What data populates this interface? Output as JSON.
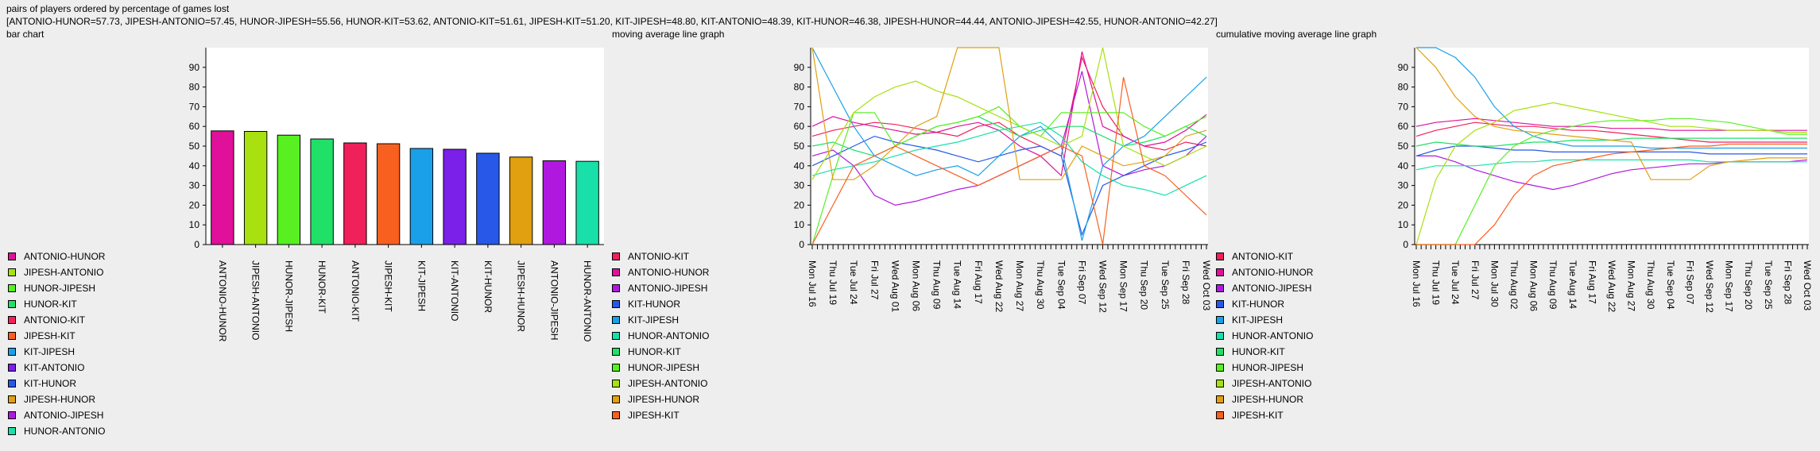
{
  "header": {
    "title": "pairs of players ordered by percentage of games lost",
    "summary": "[ANTONIO-HUNOR=57.73, JIPESH-ANTONIO=57.45, HUNOR-JIPESH=55.56, HUNOR-KIT=53.62, ANTONIO-KIT=51.61, JIPESH-KIT=51.20, KIT-JIPESH=48.80, KIT-ANTONIO=48.39, KIT-HUNOR=46.38, JIPESH-HUNOR=44.44, ANTONIO-JIPESH=42.55, HUNOR-ANTONIO=42.27]"
  },
  "colors": {
    "ANTONIO-HUNOR": "#e0109a",
    "JIPESH-ANTONIO": "#a8e010",
    "HUNOR-JIPESH": "#58f020",
    "HUNOR-KIT": "#20e068",
    "ANTONIO-KIT": "#f0205a",
    "JIPESH-KIT": "#f86020",
    "KIT-JIPESH": "#1aa0e8",
    "KIT-ANTONIO": "#7a20e8",
    "KIT-HUNOR": "#2858e8",
    "JIPESH-HUNOR": "#e0a010",
    "ANTONIO-JIPESH": "#b018e0",
    "HUNOR-ANTONIO": "#18e0a8"
  },
  "chart_data": [
    {
      "type": "bar",
      "title": "bar chart",
      "categories": [
        "ANTONIO-HUNOR",
        "JIPESH-ANTONIO",
        "HUNOR-JIPESH",
        "HUNOR-KIT",
        "ANTONIO-KIT",
        "JIPESH-KIT",
        "KIT-JIPESH",
        "KIT-ANTONIO",
        "KIT-HUNOR",
        "JIPESH-HUNOR",
        "ANTONIO-JIPESH",
        "HUNOR-ANTONIO"
      ],
      "values": [
        57.73,
        57.45,
        55.56,
        53.62,
        51.61,
        51.2,
        48.8,
        48.39,
        46.38,
        44.44,
        42.55,
        42.27
      ],
      "yticks": [
        "0",
        "10",
        "20",
        "30",
        "40",
        "50",
        "60",
        "70",
        "80",
        "90"
      ],
      "ylim": [
        0,
        100
      ],
      "legend": [
        "ANTONIO-HUNOR",
        "JIPESH-ANTONIO",
        "HUNOR-JIPESH",
        "HUNOR-KIT",
        "ANTONIO-KIT",
        "JIPESH-KIT",
        "KIT-JIPESH",
        "KIT-ANTONIO",
        "KIT-HUNOR",
        "JIPESH-HUNOR",
        "ANTONIO-JIPESH",
        "HUNOR-ANTONIO"
      ]
    },
    {
      "type": "line",
      "title": "moving average line graph",
      "ylim": [
        0,
        100
      ],
      "yticks": [
        "0",
        "10",
        "20",
        "30",
        "40",
        "50",
        "60",
        "70",
        "80",
        "90"
      ],
      "x": [
        "Mon Jul 16",
        "Thu Jul 19",
        "Tue Jul 24",
        "Fri Jul 27",
        "Wed Aug 01",
        "Mon Aug 06",
        "Thu Aug 09",
        "Tue Aug 14",
        "Fri Aug 17",
        "Wed Aug 22",
        "Mon Aug 27",
        "Thu Aug 30",
        "Tue Sep 04",
        "Fri Sep 07",
        "Wed Sep 12",
        "Mon Sep 17",
        "Thu Sep 20",
        "Tue Sep 25",
        "Fri Sep 28",
        "Wed Oct 03"
      ],
      "legend": [
        "ANTONIO-KIT",
        "ANTONIO-HUNOR",
        "ANTONIO-JIPESH",
        "KIT-HUNOR",
        "KIT-JIPESH",
        "HUNOR-ANTONIO",
        "HUNOR-KIT",
        "HUNOR-JIPESH",
        "JIPESH-ANTONIO",
        "JIPESH-HUNOR",
        "JIPESH-KIT"
      ],
      "series": [
        {
          "name": "ANTONIO-KIT",
          "values": [
            55,
            58,
            60,
            62,
            61,
            59,
            57,
            55,
            60,
            62,
            55,
            50,
            45,
            95,
            70,
            55,
            50,
            48,
            52,
            50
          ]
        },
        {
          "name": "ANTONIO-HUNOR",
          "values": [
            60,
            65,
            62,
            60,
            58,
            56,
            57,
            60,
            62,
            58,
            50,
            45,
            35,
            98,
            60,
            55,
            50,
            52,
            58,
            66
          ]
        },
        {
          "name": "ANTONIO-JIPESH",
          "values": [
            45,
            48,
            40,
            25,
            20,
            22,
            25,
            28,
            30,
            35,
            40,
            45,
            50,
            88,
            40,
            35,
            38,
            40,
            45,
            55
          ]
        },
        {
          "name": "KIT-HUNOR",
          "values": [
            40,
            45,
            50,
            55,
            52,
            50,
            48,
            45,
            42,
            45,
            48,
            50,
            45,
            5,
            30,
            35,
            40,
            45,
            48,
            52
          ]
        },
        {
          "name": "KIT-JIPESH",
          "values": [
            100,
            80,
            60,
            45,
            40,
            35,
            38,
            40,
            35,
            45,
            55,
            60,
            50,
            2,
            40,
            50,
            55,
            65,
            75,
            85
          ]
        },
        {
          "name": "HUNOR-ANTONIO",
          "values": [
            35,
            38,
            40,
            42,
            45,
            48,
            50,
            52,
            55,
            58,
            60,
            62,
            55,
            42,
            35,
            30,
            28,
            25,
            30,
            35
          ]
        },
        {
          "name": "HUNOR-KIT",
          "values": [
            50,
            52,
            48,
            45,
            50,
            55,
            60,
            62,
            65,
            60,
            55,
            58,
            60,
            60,
            55,
            50,
            52,
            55,
            60,
            55
          ]
        },
        {
          "name": "HUNOR-JIPESH",
          "values": [
            0,
            35,
            67,
            67,
            50,
            55,
            60,
            62,
            65,
            70,
            60,
            55,
            67,
            67,
            67,
            67,
            60,
            55,
            60,
            65
          ]
        },
        {
          "name": "JIPESH-ANTONIO",
          "values": [
            33,
            50,
            67,
            75,
            80,
            83,
            78,
            75,
            70,
            65,
            60,
            55,
            50,
            55,
            100,
            50,
            45,
            40,
            45,
            50
          ]
        },
        {
          "name": "JIPESH-HUNOR",
          "values": [
            100,
            33,
            33,
            40,
            50,
            60,
            65,
            100,
            100,
            100,
            33,
            33,
            33,
            50,
            45,
            40,
            42,
            45,
            55,
            58
          ]
        },
        {
          "name": "JIPESH-KIT",
          "values": [
            0,
            20,
            40,
            45,
            50,
            45,
            40,
            35,
            30,
            35,
            40,
            45,
            50,
            45,
            0,
            85,
            40,
            35,
            25,
            15
          ]
        }
      ]
    },
    {
      "type": "line",
      "title": "cumulative moving average line graph",
      "ylim": [
        0,
        100
      ],
      "yticks": [
        "0",
        "10",
        "20",
        "30",
        "40",
        "50",
        "60",
        "70",
        "80",
        "90"
      ],
      "x": [
        "Mon Jul 16",
        "Thu Jul 19",
        "Tue Jul 24",
        "Fri Jul 27",
        "Mon Jul 30",
        "Thu Aug 02",
        "Mon Aug 06",
        "Thu Aug 09",
        "Tue Aug 14",
        "Fri Aug 17",
        "Wed Aug 22",
        "Mon Aug 27",
        "Thu Aug 30",
        "Tue Sep 04",
        "Fri Sep 07",
        "Wed Sep 12",
        "Mon Sep 17",
        "Thu Sep 20",
        "Tue Sep 25",
        "Fri Sep 28",
        "Wed Oct 03"
      ],
      "legend": [
        "ANTONIO-KIT",
        "ANTONIO-HUNOR",
        "ANTONIO-JIPESH",
        "KIT-HUNOR",
        "KIT-JIPESH",
        "HUNOR-ANTONIO",
        "HUNOR-KIT",
        "HUNOR-JIPESH",
        "JIPESH-ANTONIO",
        "JIPESH-HUNOR",
        "JIPESH-KIT"
      ],
      "series": [
        {
          "name": "ANTONIO-KIT",
          "values": [
            55,
            58,
            60,
            62,
            61,
            60,
            60,
            59,
            58,
            58,
            57,
            56,
            55,
            54,
            53,
            52,
            52,
            52,
            52,
            52,
            52
          ]
        },
        {
          "name": "ANTONIO-HUNOR",
          "values": [
            60,
            62,
            63,
            64,
            63,
            62,
            61,
            60,
            60,
            60,
            59,
            59,
            59,
            58,
            58,
            58,
            58,
            58,
            58,
            58,
            58
          ]
        },
        {
          "name": "ANTONIO-JIPESH",
          "values": [
            45,
            45,
            42,
            38,
            35,
            32,
            30,
            28,
            30,
            33,
            36,
            38,
            39,
            40,
            41,
            41,
            42,
            42,
            42,
            42,
            43
          ]
        },
        {
          "name": "KIT-HUNOR",
          "values": [
            45,
            48,
            50,
            50,
            49,
            48,
            48,
            47,
            47,
            47,
            47,
            47,
            47,
            47,
            47,
            46,
            46,
            46,
            46,
            46,
            46
          ]
        },
        {
          "name": "KIT-JIPESH",
          "values": [
            100,
            100,
            95,
            85,
            70,
            60,
            55,
            52,
            50,
            50,
            50,
            50,
            49,
            49,
            49,
            49,
            49,
            49,
            49,
            49,
            49
          ]
        },
        {
          "name": "HUNOR-ANTONIO",
          "values": [
            38,
            40,
            40,
            40,
            41,
            42,
            42,
            43,
            43,
            43,
            43,
            43,
            43,
            43,
            43,
            42,
            42,
            42,
            42,
            42,
            42
          ]
        },
        {
          "name": "HUNOR-KIT",
          "values": [
            50,
            52,
            51,
            50,
            50,
            51,
            52,
            52,
            53,
            53,
            53,
            54,
            54,
            54,
            54,
            54,
            54,
            54,
            54,
            54,
            54
          ]
        },
        {
          "name": "HUNOR-JIPESH",
          "values": [
            0,
            0,
            0,
            20,
            40,
            50,
            55,
            58,
            60,
            62,
            63,
            63,
            63,
            64,
            64,
            63,
            62,
            60,
            58,
            56,
            56
          ]
        },
        {
          "name": "JIPESH-ANTONIO",
          "values": [
            0,
            33,
            50,
            58,
            62,
            68,
            70,
            72,
            70,
            68,
            66,
            64,
            62,
            60,
            60,
            59,
            58,
            58,
            58,
            57,
            57
          ]
        },
        {
          "name": "JIPESH-HUNOR",
          "values": [
            100,
            90,
            75,
            65,
            60,
            58,
            57,
            56,
            55,
            54,
            53,
            52,
            33,
            33,
            33,
            40,
            42,
            43,
            44,
            44,
            44
          ]
        },
        {
          "name": "JIPESH-KIT",
          "values": [
            0,
            0,
            0,
            0,
            10,
            25,
            35,
            40,
            42,
            44,
            46,
            47,
            48,
            49,
            50,
            50,
            51,
            51,
            51,
            51,
            51
          ]
        }
      ]
    }
  ]
}
